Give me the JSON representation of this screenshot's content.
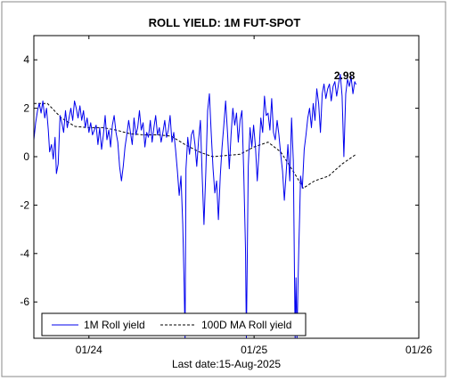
{
  "chart_data": {
    "type": "line",
    "title": "ROLL YIELD: 1M FUT-SPOT",
    "xlabel": "",
    "ylabel": "",
    "footer": "Last date:15-Aug-2025",
    "x_range": [
      "2023-09-01",
      "2026-01-01"
    ],
    "ylim": [
      -7.5,
      5
    ],
    "y_ticks": [
      4,
      2,
      0,
      -2,
      -4,
      -6
    ],
    "x_ticks": [
      {
        "date": "2024-01-01",
        "label": "01/24"
      },
      {
        "date": "2025-01-01",
        "label": "01/25"
      },
      {
        "date": "2026-01-01",
        "label": "01/26"
      }
    ],
    "grid": false,
    "legend_position": "bottom",
    "annotation": {
      "text": "2.98",
      "date": "2025-08-15",
      "value": 2.98
    },
    "colors": {
      "series1": "#0000ee",
      "series2": "#000000",
      "background": "#ffffff"
    },
    "series": [
      {
        "name": "1M Roll yield",
        "style": "solid",
        "points": [
          [
            "2023-09-01",
            0.7
          ],
          [
            "2023-09-05",
            1.4
          ],
          [
            "2023-09-09",
            1.9
          ],
          [
            "2023-09-13",
            2.2
          ],
          [
            "2023-09-17",
            1.8
          ],
          [
            "2023-09-21",
            2.3
          ],
          [
            "2023-09-25",
            1.6
          ],
          [
            "2023-09-29",
            2.0
          ],
          [
            "2023-10-03",
            1.1
          ],
          [
            "2023-10-06",
            0.2
          ],
          [
            "2023-10-10",
            0.5
          ],
          [
            "2023-10-14",
            -0.1
          ],
          [
            "2023-10-18",
            0.8
          ],
          [
            "2023-10-21",
            -0.7
          ],
          [
            "2023-10-25",
            -0.3
          ],
          [
            "2023-10-29",
            1.7
          ],
          [
            "2023-11-02",
            1.4
          ],
          [
            "2023-11-06",
            1.0
          ],
          [
            "2023-11-10",
            1.9
          ],
          [
            "2023-11-14",
            1.2
          ],
          [
            "2023-11-18",
            1.6
          ],
          [
            "2023-11-22",
            2.0
          ],
          [
            "2023-11-26",
            1.5
          ],
          [
            "2023-11-30",
            2.3
          ],
          [
            "2023-12-04",
            2.0
          ],
          [
            "2023-12-08",
            1.6
          ],
          [
            "2023-12-12",
            2.1
          ],
          [
            "2023-12-16",
            1.5
          ],
          [
            "2023-12-20",
            1.9
          ],
          [
            "2023-12-24",
            1.2
          ],
          [
            "2023-12-28",
            1.6
          ],
          [
            "2024-01-01",
            1.0
          ],
          [
            "2024-01-05",
            1.4
          ],
          [
            "2024-01-09",
            0.9
          ],
          [
            "2024-01-13",
            1.1
          ],
          [
            "2024-01-17",
            1.3
          ],
          [
            "2024-01-21",
            0.5
          ],
          [
            "2024-01-25",
            1.2
          ],
          [
            "2024-01-29",
            0.3
          ],
          [
            "2024-02-02",
            0.9
          ],
          [
            "2024-02-06",
            1.7
          ],
          [
            "2024-02-10",
            0.7
          ],
          [
            "2024-02-14",
            1.1
          ],
          [
            "2024-02-18",
            0.4
          ],
          [
            "2024-02-22",
            1.3
          ],
          [
            "2024-02-26",
            1.7
          ],
          [
            "2024-03-01",
            1.0
          ],
          [
            "2024-03-05",
            0.6
          ],
          [
            "2024-03-09",
            -0.4
          ],
          [
            "2024-03-13",
            -1.0
          ],
          [
            "2024-03-17",
            -0.4
          ],
          [
            "2024-03-21",
            0.4
          ],
          [
            "2024-03-25",
            0.9
          ],
          [
            "2024-03-29",
            1.5
          ],
          [
            "2024-04-02",
            1.0
          ],
          [
            "2024-04-06",
            0.5
          ],
          [
            "2024-04-10",
            1.6
          ],
          [
            "2024-04-14",
            0.9
          ],
          [
            "2024-04-18",
            1.2
          ],
          [
            "2024-04-22",
            1.9
          ],
          [
            "2024-04-26",
            1.1
          ],
          [
            "2024-04-30",
            1.4
          ],
          [
            "2024-05-04",
            0.4
          ],
          [
            "2024-05-08",
            1.0
          ],
          [
            "2024-05-12",
            0.8
          ],
          [
            "2024-05-16",
            1.5
          ],
          [
            "2024-05-20",
            0.6
          ],
          [
            "2024-05-24",
            1.2
          ],
          [
            "2024-05-28",
            1.7
          ],
          [
            "2024-06-01",
            0.9
          ],
          [
            "2024-06-05",
            1.2
          ],
          [
            "2024-06-09",
            0.6
          ],
          [
            "2024-06-13",
            1.0
          ],
          [
            "2024-06-17",
            1.5
          ],
          [
            "2024-06-21",
            0.8
          ],
          [
            "2024-06-25",
            1.1
          ],
          [
            "2024-06-29",
            1.7
          ],
          [
            "2024-07-03",
            0.6
          ],
          [
            "2024-07-07",
            1.0
          ],
          [
            "2024-07-11",
            0.3
          ],
          [
            "2024-07-15",
            -0.6
          ],
          [
            "2024-07-19",
            -1.6
          ],
          [
            "2024-07-23",
            -0.8
          ],
          [
            "2024-07-27",
            -2.8
          ],
          [
            "2024-07-30",
            -5.2
          ],
          [
            "2024-08-01",
            -7.5
          ],
          [
            "2024-08-03",
            -0.5
          ],
          [
            "2024-08-07",
            0.8
          ],
          [
            "2024-08-11",
            0.1
          ],
          [
            "2024-08-15",
            0.9
          ],
          [
            "2024-08-19",
            1.1
          ],
          [
            "2024-08-23",
            0.5
          ],
          [
            "2024-08-27",
            -0.4
          ],
          [
            "2024-08-31",
            0.7
          ],
          [
            "2024-09-04",
            1.5
          ],
          [
            "2024-09-08",
            -0.8
          ],
          [
            "2024-09-12",
            -2.8
          ],
          [
            "2024-09-16",
            -0.6
          ],
          [
            "2024-09-20",
            1.9
          ],
          [
            "2024-09-24",
            2.6
          ],
          [
            "2024-09-28",
            1.0
          ],
          [
            "2024-10-02",
            -0.5
          ],
          [
            "2024-10-06",
            -1.5
          ],
          [
            "2024-10-10",
            -1.0
          ],
          [
            "2024-10-14",
            -2.6
          ],
          [
            "2024-10-18",
            -0.8
          ],
          [
            "2024-10-22",
            0.4
          ],
          [
            "2024-10-26",
            1.3
          ],
          [
            "2024-10-30",
            2.3
          ],
          [
            "2024-11-03",
            1.0
          ],
          [
            "2024-11-07",
            -0.5
          ],
          [
            "2024-11-11",
            0.9
          ],
          [
            "2024-11-15",
            2.0
          ],
          [
            "2024-11-19",
            1.3
          ],
          [
            "2024-11-23",
            1.8
          ],
          [
            "2024-11-27",
            0.6
          ],
          [
            "2024-12-01",
            1.5
          ],
          [
            "2024-12-05",
            1.9
          ],
          [
            "2024-12-09",
            -0.6
          ],
          [
            "2024-12-13",
            -3.8
          ],
          [
            "2024-12-15",
            -7.5
          ],
          [
            "2024-12-19",
            -0.4
          ],
          [
            "2024-12-23",
            1.2
          ],
          [
            "2024-12-27",
            0.4
          ],
          [
            "2024-12-31",
            1.3
          ],
          [
            "2025-01-04",
            0.4
          ],
          [
            "2025-01-08",
            -1.0
          ],
          [
            "2025-01-12",
            0.2
          ],
          [
            "2025-01-16",
            1.6
          ],
          [
            "2025-01-20",
            1.0
          ],
          [
            "2025-01-24",
            2.5
          ],
          [
            "2025-01-28",
            1.7
          ],
          [
            "2025-02-01",
            1.8
          ],
          [
            "2025-02-05",
            1.1
          ],
          [
            "2025-02-09",
            2.4
          ],
          [
            "2025-02-13",
            1.0
          ],
          [
            "2025-02-17",
            0.7
          ],
          [
            "2025-02-21",
            1.5
          ],
          [
            "2025-02-25",
            0.9
          ],
          [
            "2025-03-01",
            0.1
          ],
          [
            "2025-03-05",
            -0.6
          ],
          [
            "2025-03-09",
            -1.8
          ],
          [
            "2025-03-13",
            -0.7
          ],
          [
            "2025-03-17",
            0.5
          ],
          [
            "2025-03-21",
            -1.0
          ],
          [
            "2025-03-25",
            1.6
          ],
          [
            "2025-03-29",
            -0.2
          ],
          [
            "2025-04-02",
            -7.5
          ],
          [
            "2025-04-04",
            -5.0
          ],
          [
            "2025-04-06",
            -7.5
          ],
          [
            "2025-04-08",
            -5.5
          ],
          [
            "2025-04-10",
            -3.8
          ],
          [
            "2025-04-12",
            -2.4
          ],
          [
            "2025-04-14",
            -0.8
          ],
          [
            "2025-04-18",
            -1.3
          ],
          [
            "2025-04-22",
            0.3
          ],
          [
            "2025-04-26",
            0.9
          ],
          [
            "2025-04-30",
            1.6
          ],
          [
            "2025-05-04",
            2.0
          ],
          [
            "2025-05-08",
            1.2
          ],
          [
            "2025-05-12",
            2.2
          ],
          [
            "2025-05-16",
            1.5
          ],
          [
            "2025-05-20",
            2.8
          ],
          [
            "2025-05-24",
            2.2
          ],
          [
            "2025-05-28",
            1.0
          ],
          [
            "2025-06-01",
            2.6
          ],
          [
            "2025-06-05",
            3.0
          ],
          [
            "2025-06-09",
            2.4
          ],
          [
            "2025-06-13",
            2.8
          ],
          [
            "2025-06-17",
            3.0
          ],
          [
            "2025-06-21",
            2.3
          ],
          [
            "2025-06-25",
            2.9
          ],
          [
            "2025-06-29",
            3.1
          ],
          [
            "2025-07-03",
            2.5
          ],
          [
            "2025-07-07",
            3.0
          ],
          [
            "2025-07-11",
            3.4
          ],
          [
            "2025-07-15",
            2.5
          ],
          [
            "2025-07-19",
            0.0
          ],
          [
            "2025-07-23",
            2.6
          ],
          [
            "2025-07-27",
            3.2
          ],
          [
            "2025-07-31",
            2.9
          ],
          [
            "2025-08-04",
            3.3
          ],
          [
            "2025-08-08",
            2.6
          ],
          [
            "2025-08-12",
            3.1
          ],
          [
            "2025-08-15",
            2.98
          ]
        ]
      },
      {
        "name": "100D MA Roll yield",
        "style": "dashed",
        "points": [
          [
            "2023-09-01",
            2.2
          ],
          [
            "2023-10-01",
            2.2
          ],
          [
            "2023-11-01",
            1.6
          ],
          [
            "2023-12-01",
            1.25
          ],
          [
            "2024-01-01",
            1.2
          ],
          [
            "2024-02-01",
            1.2
          ],
          [
            "2024-03-01",
            1.1
          ],
          [
            "2024-04-01",
            0.95
          ],
          [
            "2024-05-01",
            0.9
          ],
          [
            "2024-06-01",
            0.9
          ],
          [
            "2024-07-01",
            0.85
          ],
          [
            "2024-08-01",
            0.5
          ],
          [
            "2024-09-01",
            0.2
          ],
          [
            "2024-10-01",
            0.0
          ],
          [
            "2024-11-01",
            0.05
          ],
          [
            "2024-12-01",
            0.1
          ],
          [
            "2025-01-01",
            0.4
          ],
          [
            "2025-02-01",
            0.6
          ],
          [
            "2025-03-01",
            0.2
          ],
          [
            "2025-04-01",
            -0.7
          ],
          [
            "2025-04-20",
            -1.3
          ],
          [
            "2025-05-15",
            -1.0
          ],
          [
            "2025-06-15",
            -0.8
          ],
          [
            "2025-07-15",
            -0.3
          ],
          [
            "2025-08-15",
            0.1
          ]
        ]
      }
    ]
  }
}
